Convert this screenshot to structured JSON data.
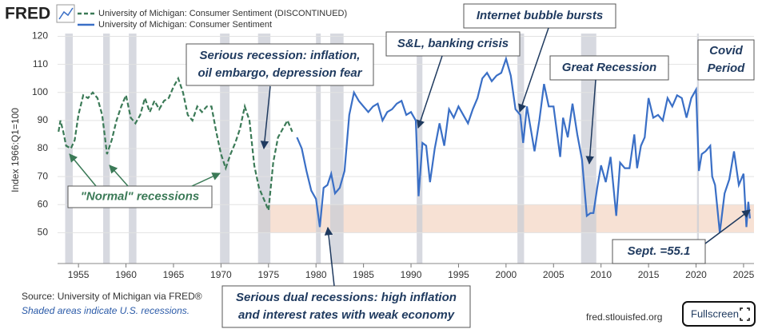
{
  "chart_data": {
    "type": "line",
    "logo": "FRED",
    "y_label": "Index 1966:Q1=100",
    "source": "Source: University of Michigan via FRED®",
    "note": "Shaded areas indicate U.S. recessions.",
    "site": "fred.stlouisfed.org",
    "button": "Fullscreen",
    "xlim": [
      1952.8,
      2026.1
    ],
    "ylim": [
      39,
      121
    ],
    "xticks": [
      1955,
      1960,
      1965,
      1970,
      1975,
      1980,
      1985,
      1990,
      1995,
      2000,
      2005,
      2010,
      2015,
      2020,
      2025
    ],
    "yticks": [
      50,
      60,
      70,
      80,
      90,
      100,
      110,
      120
    ],
    "grid": true,
    "recessions": [
      [
        1953.6,
        1954.4
      ],
      [
        1957.6,
        1958.3
      ],
      [
        1960.3,
        1961.1
      ],
      [
        1969.9,
        1970.9
      ],
      [
        1973.9,
        1975.2
      ],
      [
        1980.0,
        1980.5
      ],
      [
        1981.5,
        1982.9
      ],
      [
        1990.6,
        1991.2
      ],
      [
        2001.2,
        2001.9
      ],
      [
        2007.9,
        2009.5
      ],
      [
        2020.1,
        2020.3
      ]
    ],
    "highlight_band": {
      "x": [
        1973.9,
        2026.1
      ],
      "y": [
        50,
        60
      ],
      "color": "#f6dccd"
    },
    "series": [
      {
        "name": "University of Michigan: Consumer Sentiment (DISCONTINUED)",
        "color": "#3b7a57",
        "dashed": true,
        "x": [
          1952.9,
          1953.1,
          1953.4,
          1953.7,
          1954.2,
          1954.6,
          1955.0,
          1955.5,
          1956.0,
          1956.5,
          1957.0,
          1957.5,
          1958.0,
          1958.5,
          1959.0,
          1959.5,
          1960.0,
          1960.5,
          1961.0,
          1961.5,
          1962.0,
          1962.5,
          1963.0,
          1963.5,
          1964.0,
          1964.5,
          1965.0,
          1965.5,
          1966.0,
          1966.5,
          1967.0,
          1967.5,
          1968.0,
          1968.5,
          1969.0,
          1969.5,
          1970.0,
          1970.5,
          1971.0,
          1971.5,
          1972.0,
          1972.5,
          1973.0,
          1973.5,
          1974.0,
          1974.5,
          1975.0,
          1975.5,
          1976.0,
          1976.5,
          1977.0,
          1977.5
        ],
        "values": [
          86,
          90,
          86,
          81,
          80,
          83,
          92,
          99,
          98,
          100,
          98,
          92,
          78,
          83,
          90,
          95,
          99,
          91,
          89,
          92,
          98,
          93,
          97,
          94,
          97,
          98,
          102,
          105,
          100,
          92,
          90,
          95,
          93,
          95,
          95,
          86,
          78,
          73,
          78,
          82,
          87,
          95,
          90,
          74,
          66,
          62,
          58,
          75,
          84,
          87,
          90,
          86
        ]
      },
      {
        "name": "University of Michigan: Consumer Sentiment",
        "color": "#3a6fc6",
        "dashed": false,
        "x": [
          1978.0,
          1978.5,
          1979.0,
          1979.5,
          1980.0,
          1980.4,
          1980.8,
          1981.2,
          1981.6,
          1982.0,
          1982.5,
          1983.0,
          1983.5,
          1984.0,
          1984.5,
          1985.0,
          1985.5,
          1986.0,
          1986.5,
          1987.0,
          1987.5,
          1988.0,
          1988.5,
          1989.0,
          1989.5,
          1990.0,
          1990.5,
          1990.8,
          1991.2,
          1991.6,
          1992.0,
          1992.5,
          1993.0,
          1993.5,
          1994.0,
          1994.5,
          1995.0,
          1995.5,
          1996.0,
          1996.5,
          1997.0,
          1997.5,
          1998.0,
          1998.5,
          1999.0,
          1999.5,
          2000.0,
          2000.5,
          2001.0,
          2001.5,
          2001.8,
          2002.2,
          2002.6,
          2003.0,
          2003.5,
          2004.0,
          2004.5,
          2005.0,
          2005.7,
          2006.0,
          2006.5,
          2007.0,
          2007.5,
          2008.0,
          2008.5,
          2008.9,
          2009.2,
          2009.6,
          2010.0,
          2010.5,
          2011.0,
          2011.6,
          2012.0,
          2012.5,
          2013.0,
          2013.5,
          2013.8,
          2014.2,
          2014.6,
          2015.0,
          2015.5,
          2016.0,
          2016.5,
          2017.0,
          2017.5,
          2018.0,
          2018.5,
          2019.0,
          2019.5,
          2020.0,
          2020.3,
          2020.6,
          2021.0,
          2021.5,
          2021.7,
          2022.0,
          2022.5,
          2023.0,
          2023.5,
          2024.0,
          2024.5,
          2025.0,
          2025.3,
          2025.5,
          2025.67
        ],
        "values": [
          84,
          80,
          72,
          65,
          62,
          52,
          66,
          67,
          71,
          64,
          66,
          72,
          92,
          100,
          97,
          95,
          93,
          95,
          96,
          90,
          93,
          94,
          96,
          97,
          92,
          93,
          90,
          63,
          82,
          81,
          68,
          80,
          89,
          81,
          94,
          91,
          95,
          92,
          89,
          94,
          98,
          105,
          107,
          104,
          106,
          107,
          112,
          106,
          94,
          92,
          82,
          95,
          87,
          79,
          90,
          103,
          95,
          95,
          77,
          91,
          84,
          96,
          85,
          76,
          56,
          57,
          57,
          66,
          74,
          68,
          77,
          56,
          75,
          73,
          73,
          85,
          73,
          81,
          84,
          98,
          91,
          92,
          90,
          98,
          95,
          99,
          98,
          91,
          98,
          101,
          72,
          78,
          79,
          81,
          70,
          67,
          50,
          64,
          69,
          79,
          67,
          71,
          52,
          61,
          55.1
        ]
      }
    ],
    "annotations": [
      {
        "lines": [
          "Serious recession: inflation,",
          "oil embargo, depression fear"
        ]
      },
      {
        "lines": [
          "Internet bubble bursts"
        ]
      },
      {
        "lines": [
          "S&L, banking crisis"
        ]
      },
      {
        "lines": [
          "Great Recession"
        ]
      },
      {
        "lines": [
          "Covid",
          "Period"
        ]
      },
      {
        "lines": [
          "\"Normal\" recessions"
        ]
      },
      {
        "lines": [
          "Serious dual recessions: high inflation",
          "and interest rates with weak economy"
        ]
      },
      {
        "lines": [
          "Sept. =55.1"
        ]
      }
    ]
  }
}
